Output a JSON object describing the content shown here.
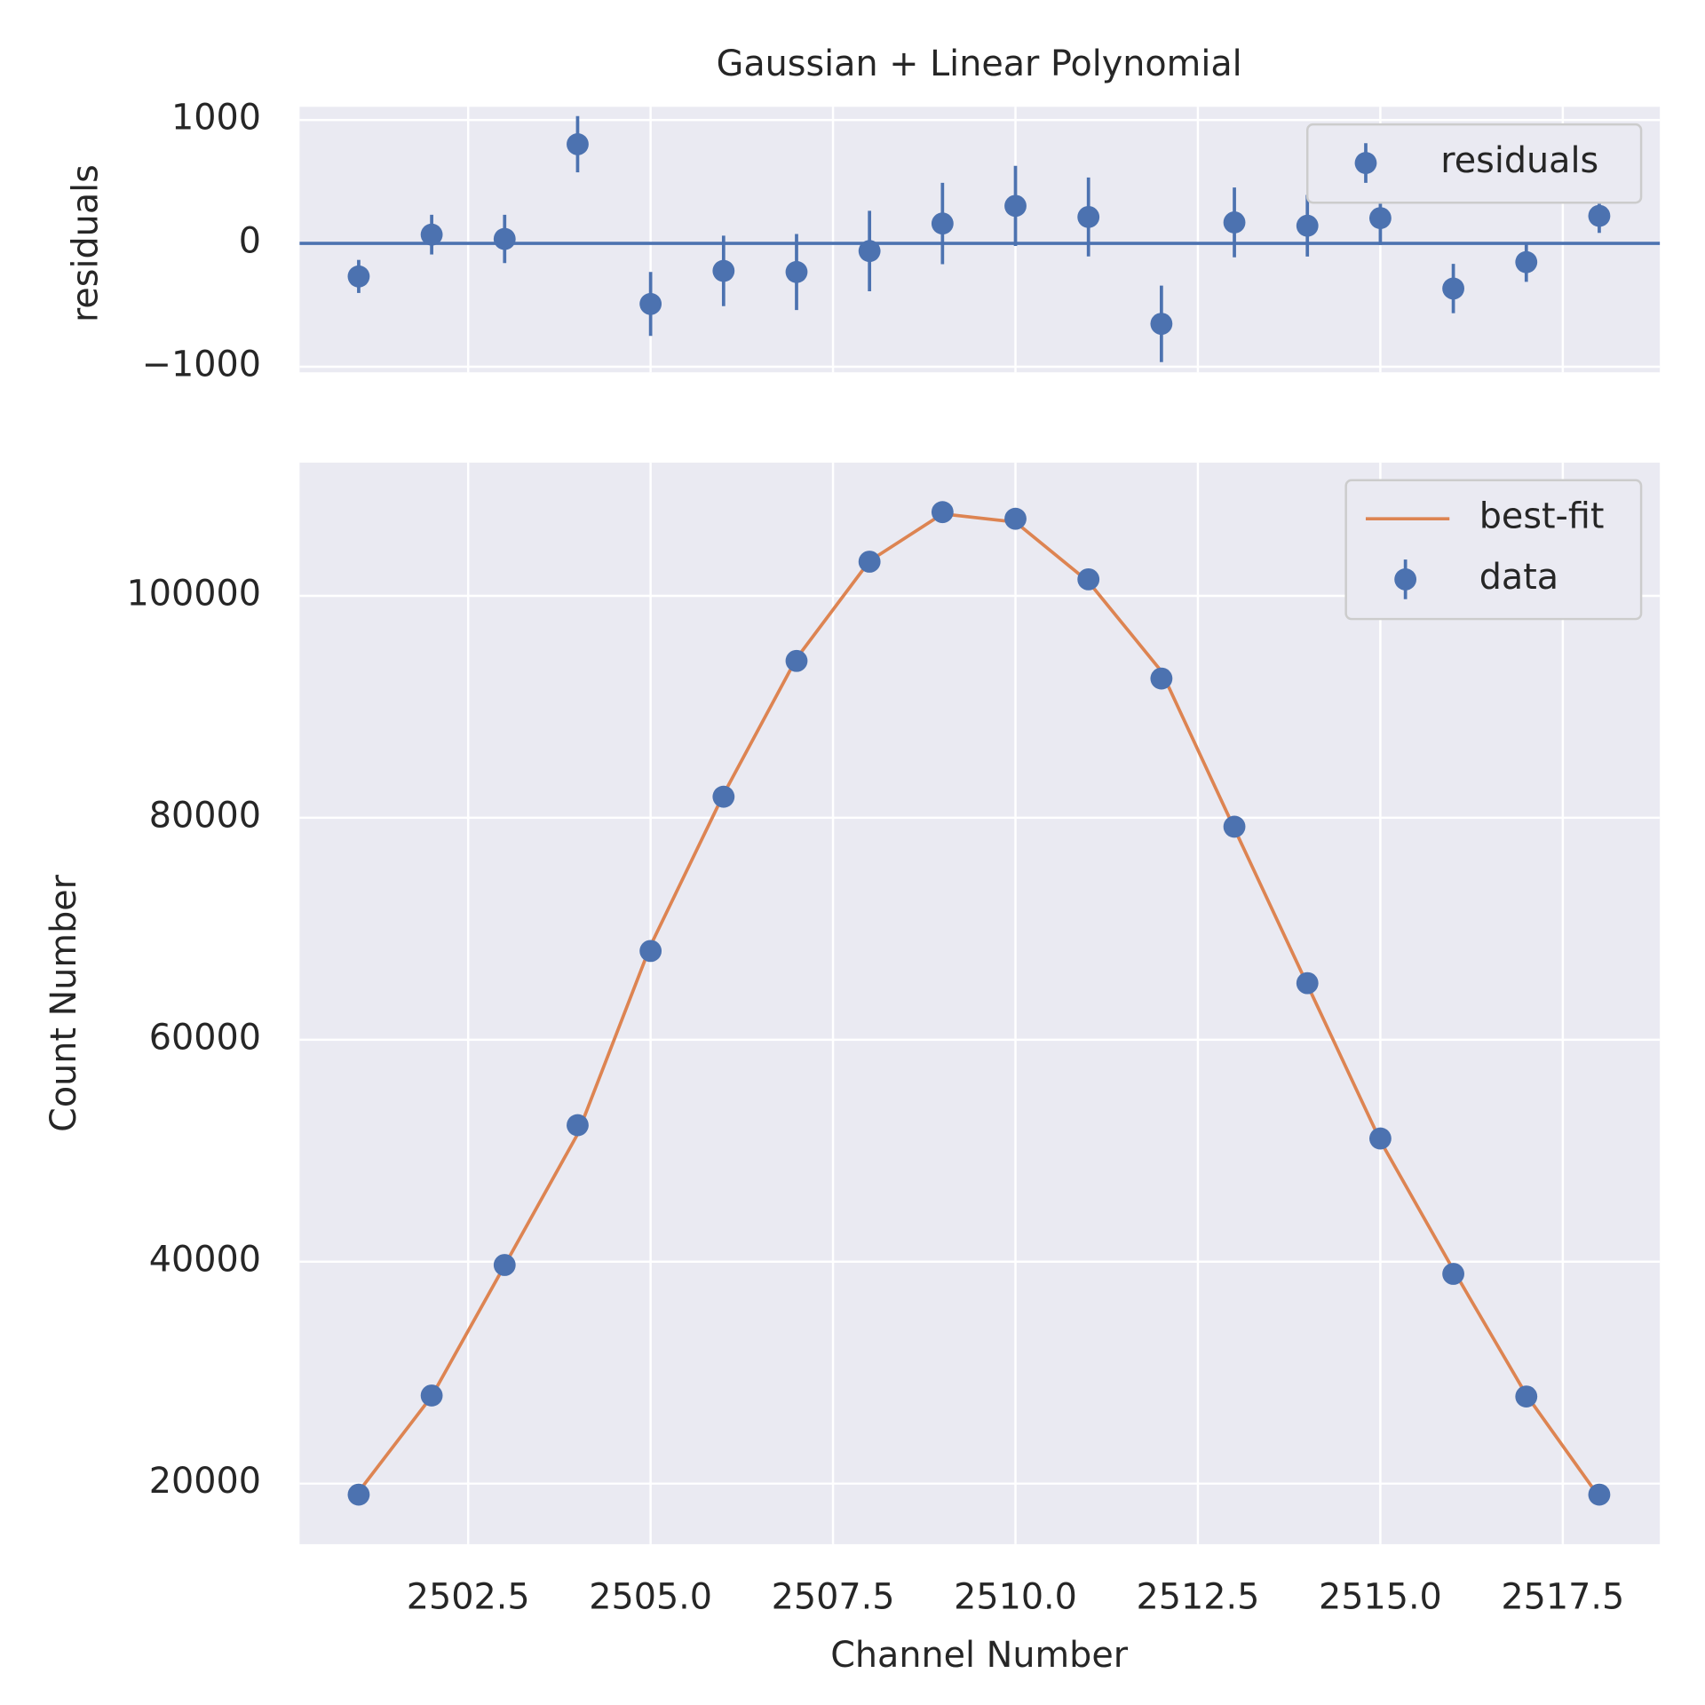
{
  "chart_data": [
    {
      "type": "errorbar",
      "title": "Gaussian + Linear Polynomial",
      "ylabel": "residuals",
      "x": [
        2501,
        2502,
        2503,
        2504,
        2505,
        2506,
        2507,
        2508,
        2509,
        2510,
        2511,
        2512,
        2513,
        2514,
        2515,
        2516,
        2517,
        2518
      ],
      "series": [
        {
          "name": "residuals",
          "color": "#4c72b0",
          "values": [
            -268,
            71,
            36,
            804,
            -491,
            -223,
            -232,
            -62,
            161,
            304,
            214,
            -652,
            170,
            143,
            205,
            -366,
            -152,
            223
          ],
          "errors": [
            134,
            161,
            196,
            228,
            259,
            286,
            308,
            326,
            330,
            325,
            320,
            310,
            283,
            250,
            218,
            200,
            160,
            138
          ]
        }
      ],
      "hline": 0,
      "xlim": [
        2500.19,
        2518.83
      ],
      "ylim": [
        -1045,
        1107
      ],
      "yticks": [
        {
          "value": -1000,
          "label": "−1000"
        },
        0,
        1000
      ],
      "grid": true,
      "legend": "upper right"
    },
    {
      "type": "line",
      "xlabel": "Channel Number",
      "ylabel": "Count Number",
      "x": [
        2501,
        2502,
        2503,
        2504,
        2505,
        2506,
        2507,
        2508,
        2509,
        2510,
        2511,
        2512,
        2513,
        2514,
        2515,
        2516,
        2517,
        2518
      ],
      "series": [
        {
          "name": "best-fit",
          "color": "#dd8452",
          "style": "line",
          "values": [
            19275,
            27869,
            39664,
            51496,
            68491,
            82123,
            94372,
            103142,
            107389,
            106646,
            101276,
            93202,
            79030,
            64957,
            50895,
            39266,
            28002,
            18784
          ]
        },
        {
          "name": "data",
          "color": "#4c72b0",
          "style": "points",
          "values": [
            19007,
            27940,
            39700,
            52300,
            68000,
            81900,
            94140,
            103080,
            107550,
            106950,
            101490,
            92550,
            79200,
            65100,
            51100,
            38900,
            27850,
            19007
          ]
        }
      ],
      "xlim": [
        2500.19,
        2518.83
      ],
      "ylim": [
        14540,
        112010
      ],
      "xticks": [
        2502.5,
        {
          "value": 2505,
          "label": "2505.0"
        },
        2507.5,
        {
          "value": 2510,
          "label": "2510.0"
        },
        2512.5,
        {
          "value": 2515,
          "label": "2515.0"
        },
        2517.5
      ],
      "yticks": [
        20000,
        40000,
        60000,
        80000,
        100000
      ],
      "grid": true,
      "legend": "upper right"
    }
  ]
}
